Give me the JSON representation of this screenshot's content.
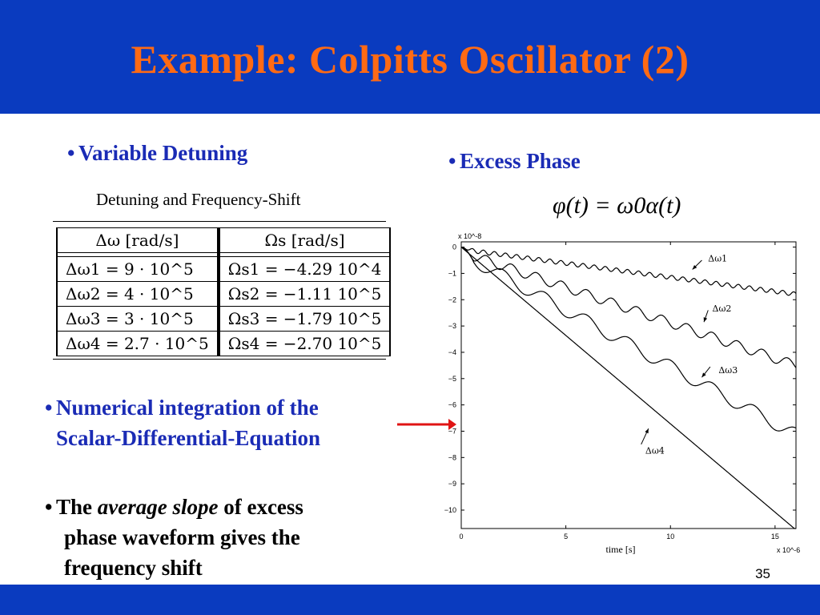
{
  "slide": {
    "title": "Example: Colpitts Oscillator (2)",
    "page_number": "35",
    "colors": {
      "bar": "#0a3bbf",
      "title": "#ff6a14",
      "bullet": "#1a2bb5"
    }
  },
  "left": {
    "bullet1": "Variable Detuning",
    "table_caption": "Detuning and Frequency-Shift",
    "table": {
      "headers": [
        "Δω [rad/s]",
        "Ωs [rad/s]"
      ],
      "rows": [
        [
          "Δω1 = 9 · 10^5",
          "Ωs1 = −4.29 10^4"
        ],
        [
          "Δω2 = 4 · 10^5",
          "Ωs2 = −1.11 10^5"
        ],
        [
          "Δω3 = 3 · 10^5",
          "Ωs3 = −1.79 10^5"
        ],
        [
          "Δω4 = 2.7 · 10^5",
          "Ωs4 = −2.70 10^5"
        ]
      ]
    },
    "bullet2_line1": "Numerical integration of  the",
    "bullet2_line2": "Scalar-Differential-Equation",
    "bullet3_pre": "The ",
    "bullet3_italic": "average slope",
    "bullet3_post": " of excess",
    "bullet3_line2": "phase waveform gives the",
    "bullet3_line3": "frequency shift"
  },
  "right": {
    "bullet": "Excess Phase",
    "formula": "φ(t) = ω0α(t)"
  },
  "chart_data": {
    "type": "line",
    "xlabel": "time [s]",
    "x_multiplier": "x 10^-6",
    "y_multiplier": "x 10^-8",
    "xlim": [
      0,
      16
    ],
    "ylim": [
      -10.7,
      0.2
    ],
    "x_ticks": [
      0,
      5,
      10,
      15
    ],
    "y_ticks": [
      0,
      -1,
      -2,
      -3,
      -4,
      -5,
      -6,
      -7,
      -8,
      -9,
      -10
    ],
    "series": [
      {
        "name": "Δω1",
        "slope": -0.107,
        "ripple": 0.08,
        "period": 0.53
      },
      {
        "name": "Δω2",
        "slope": -0.27,
        "ripple": 0.18,
        "period": 1.2
      },
      {
        "name": "Δω3",
        "slope": -0.43,
        "ripple": 0.25,
        "period": 2.0
      },
      {
        "name": "Δω4",
        "slope": -0.672,
        "ripple": 0.0,
        "period": 1.0
      }
    ],
    "annotations": [
      {
        "label": "Δω1",
        "series": 0
      },
      {
        "label": "Δω2",
        "series": 1
      },
      {
        "label": "Δω3",
        "series": 2
      },
      {
        "label": "Δω4",
        "series": 3
      }
    ]
  }
}
